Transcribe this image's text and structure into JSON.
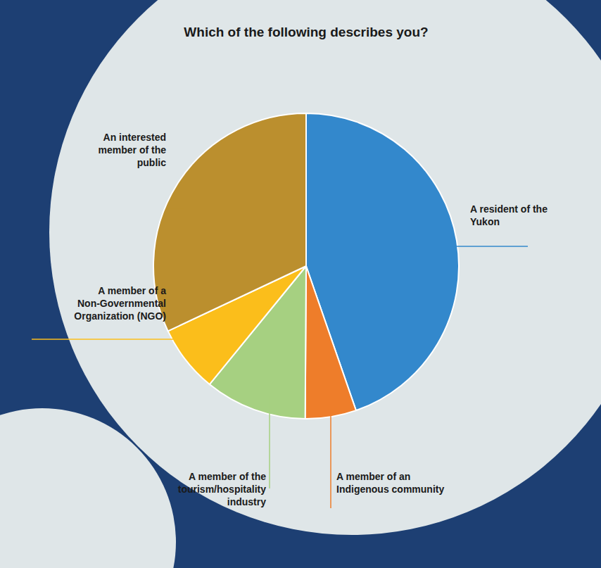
{
  "chart_data": {
    "type": "pie",
    "title": "Which of the following describes you?",
    "categories": [
      "A resident of the Yukon",
      "A member of an Indigenous community",
      "A member of the tourism/hospitality industry",
      "A member of a Non-Governmental Organization (NGO)",
      "An interested member of the public"
    ],
    "values": [
      44.7,
      5.4,
      10.8,
      7.1,
      32.0
    ],
    "colors": [
      "#3388cc",
      "#ee7d2a",
      "#a6d081",
      "#fbbe1b",
      "#bb8f2e"
    ]
  }
}
